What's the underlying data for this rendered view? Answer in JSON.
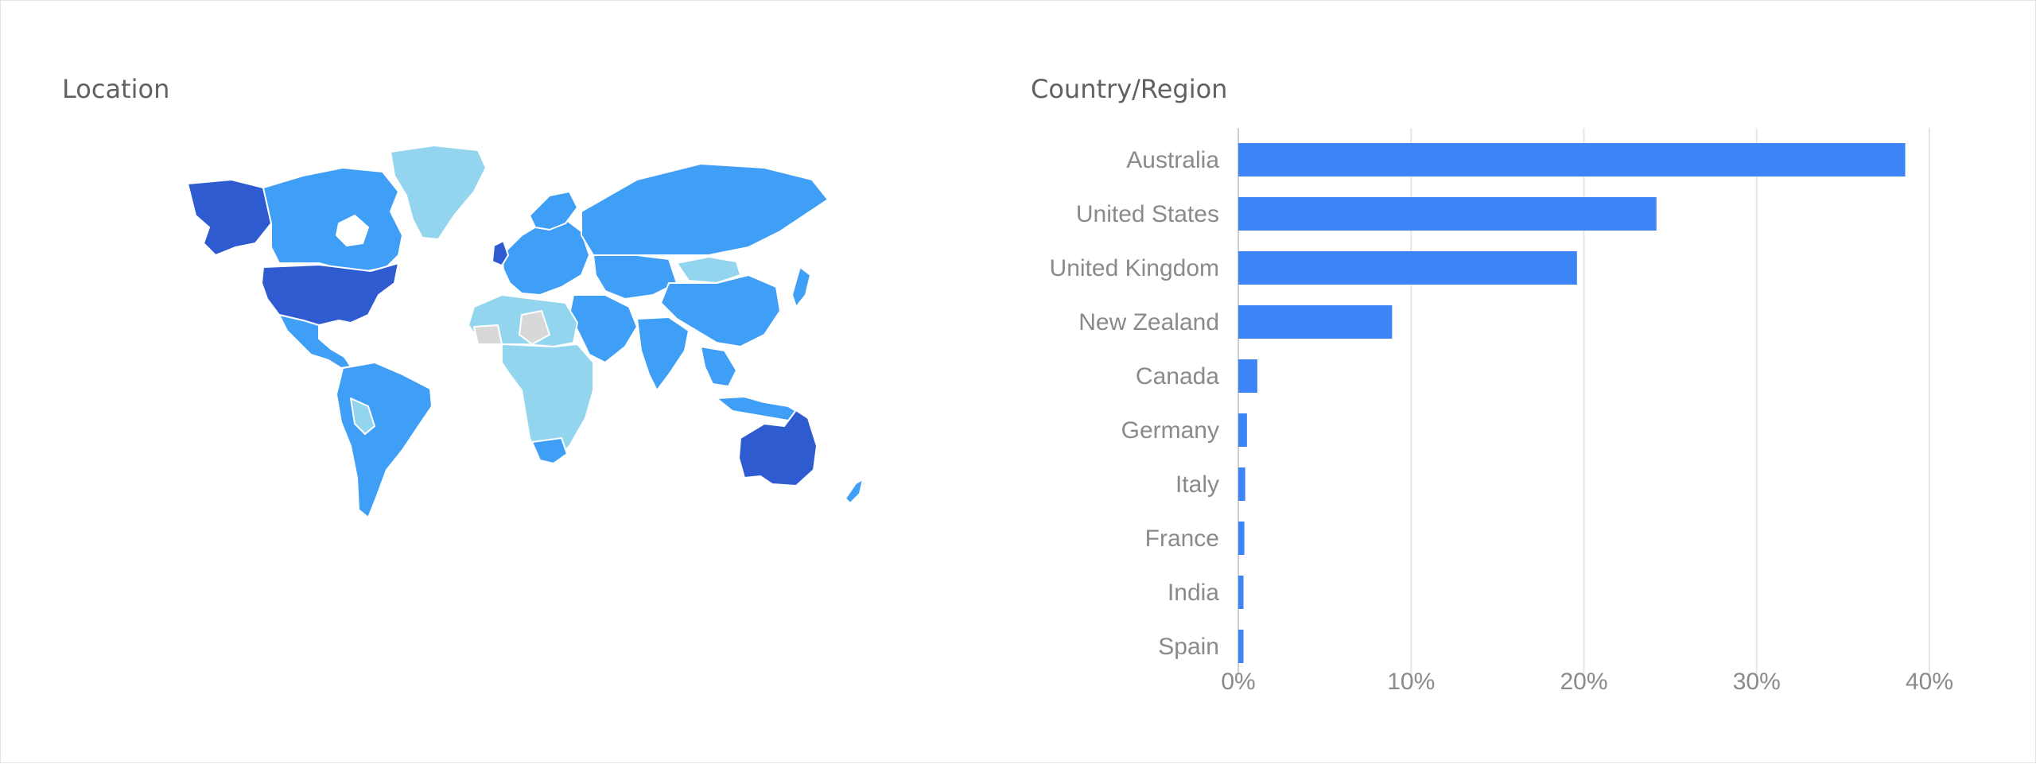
{
  "map_panel": {
    "title": "Location",
    "legend_colors": {
      "highest": "#2e5bd0",
      "high": "#3f9ef5",
      "low": "#93d5ef",
      "none": "#d8d8d8"
    },
    "highlighted_regions": [
      "Australia",
      "United States",
      "United Kingdom"
    ]
  },
  "chart_data": {
    "type": "bar",
    "orientation": "horizontal",
    "title": "Country/Region",
    "categories": [
      "Australia",
      "United States",
      "United Kingdom",
      "New Zealand",
      "Canada",
      "Germany",
      "Italy",
      "France",
      "India",
      "Spain"
    ],
    "values": [
      38.6,
      24.2,
      19.6,
      8.9,
      1.1,
      0.5,
      0.4,
      0.35,
      0.3,
      0.3
    ],
    "unit": "%",
    "xlim": [
      0,
      40
    ],
    "xticks": [
      "0%",
      "10%",
      "20%",
      "30%",
      "40%"
    ],
    "grid": true,
    "bar_color": "#3d85f6"
  }
}
